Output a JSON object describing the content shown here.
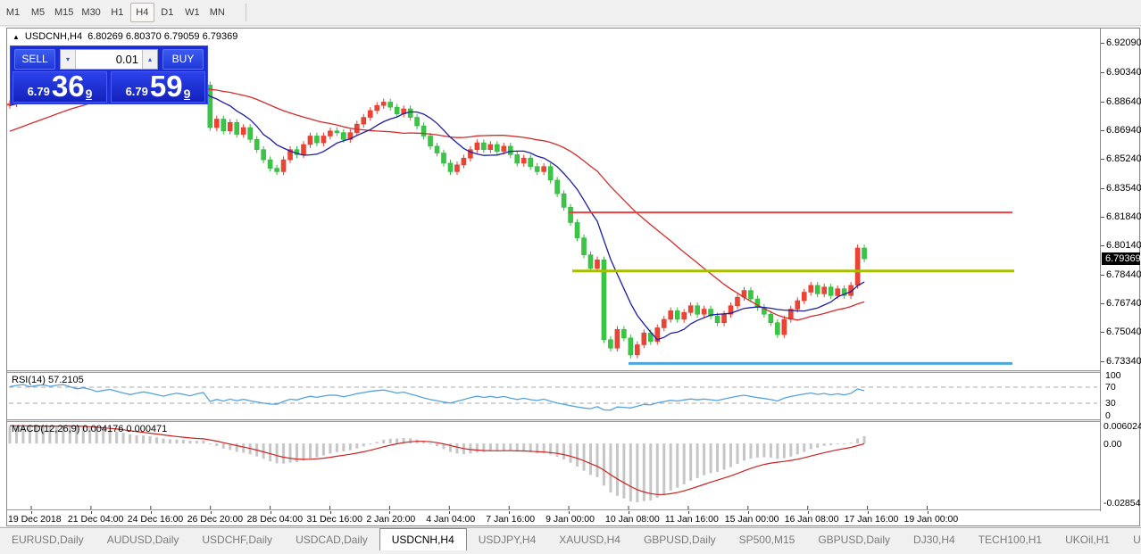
{
  "toolbar": {
    "timeframes": [
      "M1",
      "M5",
      "M15",
      "M30",
      "H1",
      "H4",
      "D1",
      "W1",
      "MN"
    ],
    "active": "H4"
  },
  "chart": {
    "title": "USDCNH,H4",
    "ohlc_text": "6.80269 6.80370 6.79059 6.79369",
    "triangle_icon": "▲"
  },
  "trade_panel": {
    "sell_label": "SELL",
    "buy_label": "BUY",
    "volume": "0.01",
    "spinner_down_icon": "▾",
    "spinner_up_icon": "▴",
    "sell_quote": {
      "small": "6.79",
      "big": "36",
      "sup": "9"
    },
    "buy_quote": {
      "small": "6.79",
      "big": "59",
      "sup": "9"
    }
  },
  "price_axis": {
    "ticks": [
      "6.92090",
      "6.90340",
      "6.88640",
      "6.86940",
      "6.85240",
      "6.83540",
      "6.81840",
      "6.80140",
      "6.78440",
      "6.76740",
      "6.75040",
      "6.73340"
    ],
    "current_price": "6.79369"
  },
  "time_axis": {
    "labels": [
      "19 Dec 2018",
      "21 Dec 04:00",
      "24 Dec 16:00",
      "26 Dec 20:00",
      "28 Dec 04:00",
      "31 Dec 16:00",
      "2 Jan 20:00",
      "4 Jan 04:00",
      "7 Jan 16:00",
      "9 Jan 00:00",
      "10 Jan 08:00",
      "11 Jan 16:00",
      "15 Jan 00:00",
      "16 Jan 08:00",
      "17 Jan 16:00",
      "19 Jan 00:00"
    ]
  },
  "rsi_panel": {
    "label": "RSI(14) 57.2105",
    "scale_labels": [
      "100",
      "70",
      "30",
      "0"
    ],
    "dashed_levels": [
      70,
      30
    ]
  },
  "macd_panel": {
    "label": "MACD(12,26,9) 0.004176 0.000471",
    "scale_labels": [
      "0.006024",
      "0.00",
      "-0.028549"
    ]
  },
  "tabs": {
    "items": [
      {
        "label": "EURUSD,Daily",
        "active": false
      },
      {
        "label": "AUDUSD,Daily",
        "active": false
      },
      {
        "label": "USDCHF,Daily",
        "active": false
      },
      {
        "label": "USDCAD,Daily",
        "active": false
      },
      {
        "label": "USDCNH,H4",
        "active": true
      },
      {
        "label": "USDJPY,H4",
        "active": false
      },
      {
        "label": "XAUUSD,H4",
        "active": false
      },
      {
        "label": "GBPUSD,Daily",
        "active": false
      },
      {
        "label": "SP500,M15",
        "active": false
      },
      {
        "label": "GBPUSD,Daily",
        "active": false
      },
      {
        "label": "DJ30,H4",
        "active": false
      },
      {
        "label": "TECH100,H1",
        "active": false
      },
      {
        "label": "UKOil,H1",
        "active": false
      },
      {
        "label": "U",
        "active": false
      }
    ],
    "scroll_left_icon": "◂",
    "scroll_right_icon": "▸"
  },
  "chart_data": {
    "type": "candlestick",
    "symbol": "USDCNH",
    "timeframe": "H4",
    "title": "USDCNH,H4",
    "last_ohlc": {
      "open": 6.80269,
      "high": 6.8037,
      "low": 6.79059,
      "close": 6.79369
    },
    "ylim": [
      6.728,
      6.9288
    ],
    "x_step": 7.477,
    "wick": 0.002,
    "colors": {
      "up": "#e8382c",
      "down": "#2eb93a",
      "up_fill": "#ea4434",
      "down_fill": "#3cc446",
      "ma_fast": "#1d1da8",
      "ma_slow": "#d32b2b",
      "rsi": "#55a3dd",
      "macd_hist": "#c6c6c6",
      "macd_signal": "#cc2222",
      "level_resistance": "#ef4040",
      "level_pivot": "#a8bd00",
      "level_support": "#4da4de"
    },
    "ma_fast_period": 9,
    "ma_slow_period": 30,
    "rsi_period": 14,
    "macd_params": [
      12,
      26,
      9
    ],
    "levels": [
      {
        "name": "resistance",
        "price": 6.821,
        "color": "#ef4040",
        "x0": 629,
        "x1": 1126,
        "w": 2
      },
      {
        "name": "pivot",
        "price": 6.7865,
        "color": "#a8bd00",
        "x0": 633,
        "x1": 1128,
        "w": 3
      },
      {
        "name": "support",
        "price": 6.732,
        "color": "#4da4de",
        "x0": 696,
        "x1": 1126,
        "w": 3
      }
    ],
    "warmup_closes": [
      6.832,
      6.835,
      6.838,
      6.836,
      6.84,
      6.843,
      6.843,
      6.846,
      6.849,
      6.847,
      6.851,
      6.854,
      6.852,
      6.856,
      6.859,
      6.857,
      6.861,
      6.864,
      6.862,
      6.866,
      6.869,
      6.867,
      6.871,
      6.874,
      6.872,
      6.876,
      6.879,
      6.877,
      6.881,
      6.879,
      6.883,
      6.886,
      6.884,
      6.888,
      6.886,
      6.884
    ],
    "closes": [
      6.885,
      6.889,
      6.893,
      6.89,
      6.894,
      6.897,
      6.895,
      6.899,
      6.902,
      6.899,
      6.896,
      6.899,
      6.897,
      6.893,
      6.896,
      6.899,
      6.896,
      6.893,
      6.89,
      6.893,
      6.896,
      6.894,
      6.891,
      6.888,
      6.891,
      6.894,
      6.892,
      6.889,
      6.893,
      6.896,
      6.871,
      6.876,
      6.869,
      6.874,
      6.867,
      6.871,
      6.864,
      6.858,
      6.852,
      6.847,
      6.845,
      6.852,
      6.858,
      6.855,
      6.861,
      6.866,
      6.862,
      6.866,
      6.869,
      6.868,
      6.864,
      6.868,
      6.873,
      6.877,
      6.881,
      6.884,
      6.886,
      6.883,
      6.879,
      6.882,
      6.877,
      6.872,
      6.866,
      6.86,
      6.856,
      6.85,
      6.845,
      6.849,
      6.853,
      6.858,
      6.862,
      6.858,
      6.861,
      6.857,
      6.86,
      6.855,
      6.85,
      6.853,
      6.848,
      6.845,
      6.848,
      6.84,
      6.832,
      6.824,
      6.815,
      6.806,
      6.796,
      6.788,
      6.793,
      6.746,
      6.741,
      6.752,
      6.747,
      6.737,
      6.743,
      6.75,
      6.745,
      6.753,
      6.758,
      6.763,
      6.758,
      6.762,
      6.766,
      6.761,
      6.764,
      6.76,
      6.756,
      6.761,
      6.766,
      6.771,
      6.775,
      6.77,
      6.765,
      6.761,
      6.756,
      6.749,
      6.758,
      6.764,
      6.769,
      6.774,
      6.778,
      6.773,
      6.777,
      6.772,
      6.776,
      6.772,
      6.778,
      6.8,
      6.79369
    ]
  }
}
